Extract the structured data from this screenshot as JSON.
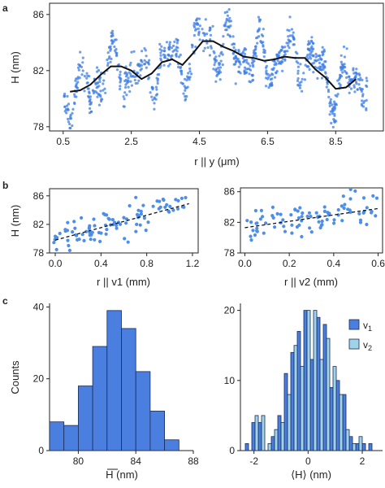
{
  "panel_labels": [
    "a",
    "b",
    "c"
  ],
  "colors": {
    "point": "#3d7ee6",
    "bar_dark": "#4a7fe0",
    "bar_light": "#9fd3ea",
    "line": "#111111"
  },
  "chart_data": [
    {
      "id": "a",
      "type": "scatter",
      "xlabel": "r || y (μm)",
      "ylabel": "H (nm)",
      "xlim": [
        0.1,
        9.9
      ],
      "ylim": [
        77.7,
        86.8
      ],
      "xticks": [
        "0.5",
        "2.5",
        "4.5",
        "6.5",
        "8.5"
      ],
      "yticks": [
        "78",
        "82",
        "86"
      ],
      "series": [
        {
          "kind": "points",
          "x_range": [
            0.53,
            9.45
          ],
          "n": 900,
          "color": "#3d7ee6"
        },
        {
          "kind": "line",
          "x": [
            0.7,
            1.0,
            1.3,
            1.6,
            1.9,
            2.2,
            2.5,
            2.8,
            3.1,
            3.4,
            3.7,
            4.0,
            4.3,
            4.6,
            4.9,
            5.2,
            5.5,
            5.8,
            6.1,
            6.4,
            6.7,
            7.0,
            7.3,
            7.6,
            7.9,
            8.2,
            8.5,
            8.8,
            9.1
          ],
          "y": [
            80.5,
            80.6,
            81.0,
            81.7,
            82.3,
            82.3,
            82.0,
            81.4,
            81.8,
            82.6,
            82.8,
            82.4,
            83.2,
            84.1,
            84.1,
            83.7,
            83.4,
            83.0,
            82.9,
            82.7,
            82.8,
            83.0,
            82.9,
            82.9,
            82.1,
            81.5,
            80.7,
            80.8,
            81.4
          ],
          "color": "#111111"
        }
      ]
    },
    {
      "id": "b-left",
      "type": "scatter",
      "xlabel": "r || v1 (mm)",
      "ylabel": "H (nm)",
      "xlim": [
        -0.05,
        1.25
      ],
      "ylim": [
        78,
        87
      ],
      "xticks": [
        "0.0",
        "0.4",
        "0.8",
        "1.2"
      ],
      "yticks": [
        "78",
        "82",
        "86"
      ],
      "fit": {
        "x": [
          0.0,
          1.17
        ],
        "y": [
          79.8,
          84.9
        ]
      },
      "n_points": 95
    },
    {
      "id": "b-right",
      "type": "scatter",
      "xlabel": "r || v2 (mm)",
      "ylabel": "",
      "xlim": [
        -0.02,
        0.62
      ],
      "ylim": [
        78,
        86.5
      ],
      "xticks": [
        "0.0",
        "0.2",
        "0.4",
        "0.6"
      ],
      "yticks": [
        "78",
        "82",
        "86"
      ],
      "fit": {
        "x": [
          0.0,
          0.6
        ],
        "y": [
          81.3,
          83.8
        ]
      },
      "n_points": 90
    },
    {
      "id": "c-left",
      "type": "bar",
      "xlabel": "H (nm)",
      "ylabel": "Counts",
      "xlim": [
        78,
        88
      ],
      "ylim": [
        0,
        41
      ],
      "xticks": [
        "80",
        "84",
        "88"
      ],
      "yticks": [
        "0",
        "20",
        "40"
      ],
      "bin_edges": [
        78,
        79,
        80,
        81,
        82,
        83,
        84,
        85,
        86,
        87
      ],
      "values": [
        8,
        7,
        18,
        29,
        39,
        34,
        22,
        11,
        3
      ]
    },
    {
      "id": "c-right",
      "type": "bar",
      "xlabel": "⟨H⟩ (nm)",
      "ylabel": "",
      "xlim": [
        -2.5,
        2.75
      ],
      "ylim": [
        0,
        21
      ],
      "xticks": [
        "-2",
        "0",
        "2"
      ],
      "yticks": [
        "0",
        "10",
        "20"
      ],
      "bin_width": 0.24,
      "series": [
        {
          "name": "v1",
          "color": "#4a7fe0",
          "x": [
            -2.2,
            -1.96,
            -1.72,
            -1.48,
            -1.24,
            -1.0,
            -0.76,
            -0.52,
            -0.28,
            -0.04,
            0.2,
            0.44,
            0.68,
            0.92,
            1.16,
            1.4,
            1.64,
            1.88,
            2.12,
            2.36
          ],
          "values": [
            1,
            4,
            4,
            0,
            2,
            5,
            11,
            14,
            17,
            20,
            13,
            19,
            18,
            9,
            10,
            8,
            2,
            1,
            1,
            1
          ]
        },
        {
          "name": "v2",
          "color": "#9fd3ea",
          "x": [
            -2.2,
            -1.96,
            -1.72,
            -1.48,
            -1.24,
            -1.0,
            -0.76,
            -0.52,
            -0.28,
            -0.04,
            0.2,
            0.44,
            0.68,
            0.92,
            1.16,
            1.4,
            1.64,
            1.88,
            2.12,
            2.36
          ],
          "values": [
            0,
            5,
            5,
            1,
            3,
            4,
            8,
            15,
            12,
            20,
            20,
            13,
            16,
            12,
            8,
            3,
            1,
            2,
            0,
            0
          ]
        }
      ]
    }
  ]
}
